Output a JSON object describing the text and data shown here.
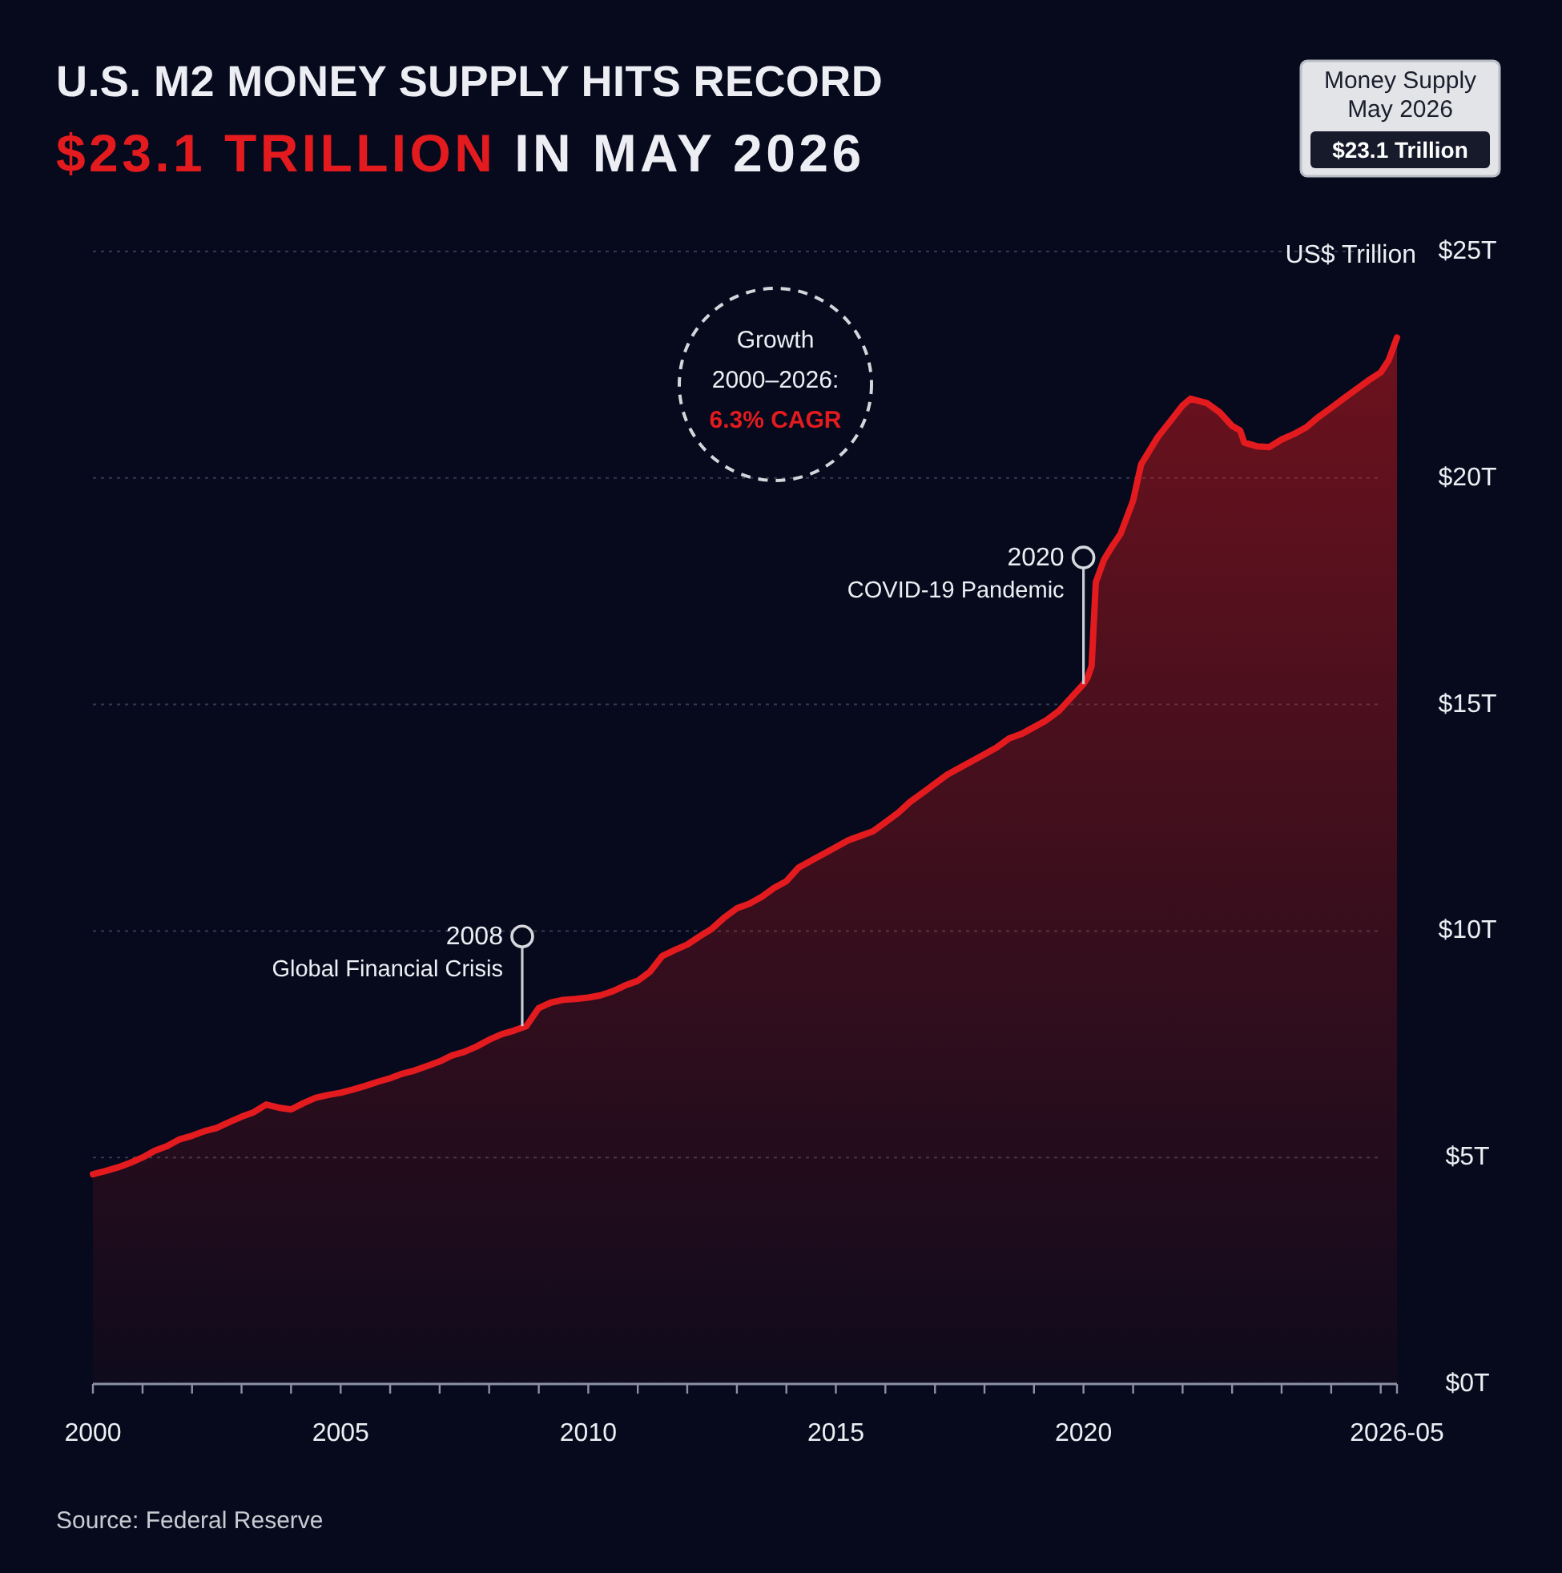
{
  "chart_data": {
    "type": "area",
    "title": "U.S. M2 MONEY SUPPLY HITS RECORD",
    "subtitle": "$23.1 TRILLION IN MAY 2026",
    "ylabel": "US$ Trillion",
    "x": [
      "2000-01",
      "2000-04",
      "2000-07",
      "2000-10",
      "2001-01",
      "2001-04",
      "2001-07",
      "2001-10",
      "2002-01",
      "2002-04",
      "2002-07",
      "2002-10",
      "2003-01",
      "2003-04",
      "2003-07",
      "2003-10",
      "2004-01",
      "2004-04",
      "2004-07",
      "2004-10",
      "2005-01",
      "2005-04",
      "2005-07",
      "2005-10",
      "2006-01",
      "2006-04",
      "2006-07",
      "2006-10",
      "2007-01",
      "2007-04",
      "2007-07",
      "2007-10",
      "2008-01",
      "2008-04",
      "2008-07",
      "2008-10",
      "2009-01",
      "2009-04",
      "2009-07",
      "2009-10",
      "2010-01",
      "2010-04",
      "2010-07",
      "2010-10",
      "2011-01",
      "2011-04",
      "2011-07",
      "2011-10",
      "2012-01",
      "2012-04",
      "2012-07",
      "2012-10",
      "2013-01",
      "2013-04",
      "2013-07",
      "2013-10",
      "2014-01",
      "2014-04",
      "2014-07",
      "2014-10",
      "2015-01",
      "2015-04",
      "2015-07",
      "2015-10",
      "2016-01",
      "2016-04",
      "2016-07",
      "2016-10",
      "2017-01",
      "2017-04",
      "2017-07",
      "2017-10",
      "2018-01",
      "2018-04",
      "2018-07",
      "2018-10",
      "2019-01",
      "2019-04",
      "2019-07",
      "2019-10",
      "2020-01",
      "2020-02",
      "2020-03",
      "2020-04",
      "2020-06",
      "2020-08",
      "2020-10",
      "2021-01",
      "2021-03",
      "2021-07",
      "2021-10",
      "2022-01",
      "2022-03",
      "2022-07",
      "2022-10",
      "2023-01",
      "2023-03",
      "2023-04",
      "2023-07",
      "2023-10",
      "2024-01",
      "2024-04",
      "2024-07",
      "2024-10",
      "2025-01",
      "2025-04",
      "2025-07",
      "2025-10",
      "2026-01",
      "2026-03",
      "2026-05"
    ],
    "values": [
      4.63,
      4.7,
      4.78,
      4.88,
      5.0,
      5.15,
      5.25,
      5.4,
      5.48,
      5.58,
      5.65,
      5.78,
      5.9,
      6.0,
      6.17,
      6.1,
      6.06,
      6.2,
      6.32,
      6.38,
      6.43,
      6.5,
      6.58,
      6.67,
      6.75,
      6.85,
      6.92,
      7.02,
      7.12,
      7.25,
      7.33,
      7.45,
      7.6,
      7.72,
      7.8,
      7.9,
      8.3,
      8.42,
      8.48,
      8.5,
      8.53,
      8.58,
      8.67,
      8.8,
      8.9,
      9.1,
      9.45,
      9.58,
      9.7,
      9.88,
      10.05,
      10.3,
      10.5,
      10.6,
      10.75,
      10.95,
      11.1,
      11.4,
      11.55,
      11.7,
      11.85,
      12.0,
      12.1,
      12.2,
      12.4,
      12.6,
      12.85,
      13.05,
      13.25,
      13.45,
      13.6,
      13.75,
      13.9,
      14.05,
      14.25,
      14.35,
      14.5,
      14.65,
      14.85,
      15.15,
      15.45,
      15.6,
      15.85,
      17.7,
      18.2,
      18.5,
      18.77,
      19.5,
      20.3,
      20.9,
      21.25,
      21.6,
      21.75,
      21.65,
      21.45,
      21.15,
      21.05,
      20.78,
      20.7,
      20.68,
      20.85,
      20.97,
      21.12,
      21.35,
      21.55,
      21.75,
      21.95,
      22.15,
      22.33,
      22.6,
      23.1
    ],
    "color": "#e31b1f",
    "xlim": [
      "2000-01",
      "2026-05"
    ],
    "xticks": [
      {
        "value": "2000",
        "label": "2000"
      },
      {
        "value": "2001",
        "label": null
      },
      {
        "value": "2002",
        "label": null
      },
      {
        "value": "2003",
        "label": null
      },
      {
        "value": "2004",
        "label": null
      },
      {
        "value": "2005",
        "label": "2005"
      },
      {
        "value": "2006",
        "label": null
      },
      {
        "value": "2007",
        "label": null
      },
      {
        "value": "2008",
        "label": null
      },
      {
        "value": "2009",
        "label": null
      },
      {
        "value": "2010",
        "label": "2010"
      },
      {
        "value": "2011",
        "label": null
      },
      {
        "value": "2012",
        "label": null
      },
      {
        "value": "2013",
        "label": null
      },
      {
        "value": "2014",
        "label": null
      },
      {
        "value": "2015",
        "label": "2015"
      },
      {
        "value": "2016",
        "label": null
      },
      {
        "value": "2017",
        "label": null
      },
      {
        "value": "2018",
        "label": null
      },
      {
        "value": "2019",
        "label": null
      },
      {
        "value": "2020",
        "label": "2020"
      },
      {
        "value": "2021",
        "label": null
      },
      {
        "value": "2022",
        "label": null
      },
      {
        "value": "2023",
        "label": null
      },
      {
        "value": "2024",
        "label": null
      },
      {
        "value": "2025",
        "label": null
      },
      {
        "value": "2026",
        "label": null
      },
      {
        "value": "2026-05",
        "label": "2026-05"
      }
    ],
    "ylim": [
      0,
      25
    ],
    "yticks": [
      {
        "value": 0,
        "label": "$0T"
      },
      {
        "value": 5,
        "label": "$5T"
      },
      {
        "value": 10,
        "label": "$10T"
      },
      {
        "value": 15,
        "label": "$15T"
      },
      {
        "value": 20,
        "label": "$20T"
      },
      {
        "value": 25,
        "label": "$25T"
      }
    ],
    "grid": "y",
    "annotations": [
      "Money Supply\nMay 2026",
      "$23.1 Trillion",
      {
        "text": "2008\nGlobal Financial Crisis",
        "x": "2008-09",
        "y": 7.9
      },
      {
        "text": "2020\nCOVID-19 Pandemic",
        "x": "2020-01",
        "y": 15.45
      },
      "Growth\n2000–2026:\n6.3% CAGR",
      "Source: Federal Reserve"
    ]
  }
}
